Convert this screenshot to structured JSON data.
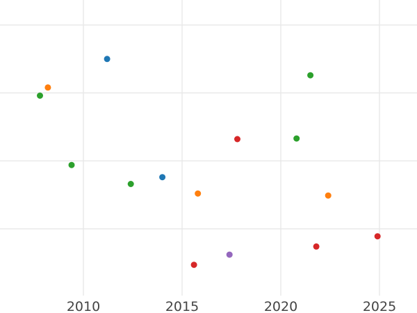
{
  "page": {
    "background": "#ffffff",
    "description": "Scatter plot cropped so that title and y-axis tick labels are out of frame; only x-axis year labels visible"
  },
  "chart_data": {
    "type": "scatter",
    "title": "",
    "xlabel": "",
    "ylabel": "",
    "grid": true,
    "legend": false,
    "x_axis": {
      "ticks": [
        2010,
        2015,
        2020,
        2025
      ],
      "tick_labels": [
        "2010",
        "2015",
        "2020",
        "2025"
      ],
      "range": [
        2005.775,
        2026.9
      ]
    },
    "y_axis": {
      "tick_labels_visible": false,
      "note": "y tick labels cropped out of view; y expressed in gridline units, 0 = lowest visible gridline, 1 unit = one gridline spacing",
      "gridline_values": [
        0,
        1,
        2,
        3
      ],
      "range": [
        -1.239,
        3.368
      ]
    },
    "series": [
      {
        "name": "blue",
        "color": "#1f77b4",
        "points": [
          {
            "x": 2011.2,
            "y": 2.5
          },
          {
            "x": 2014.0,
            "y": 0.76
          }
        ]
      },
      {
        "name": "orange",
        "color": "#ff7f0e",
        "points": [
          {
            "x": 2008.2,
            "y": 2.08
          },
          {
            "x": 2015.8,
            "y": 0.52
          },
          {
            "x": 2022.4,
            "y": 0.49
          }
        ]
      },
      {
        "name": "green",
        "color": "#2ca02c",
        "points": [
          {
            "x": 2007.8,
            "y": 1.96
          },
          {
            "x": 2009.4,
            "y": 0.94
          },
          {
            "x": 2012.4,
            "y": 0.66
          },
          {
            "x": 2020.8,
            "y": 1.33
          },
          {
            "x": 2021.5,
            "y": 2.26
          }
        ]
      },
      {
        "name": "red",
        "color": "#d62728",
        "points": [
          {
            "x": 2015.6,
            "y": -0.53
          },
          {
            "x": 2017.8,
            "y": 1.32
          },
          {
            "x": 2021.8,
            "y": -0.26
          },
          {
            "x": 2024.9,
            "y": -0.11
          }
        ]
      },
      {
        "name": "purple",
        "color": "#9467bd",
        "points": [
          {
            "x": 2017.4,
            "y": -0.38
          }
        ]
      }
    ],
    "style": {
      "background": "#ffffff",
      "gridline_color": "#e8e8e8",
      "tick_label_color": "#444444",
      "tick_font_size_px": 19,
      "marker_radius_px": 4.5
    }
  }
}
